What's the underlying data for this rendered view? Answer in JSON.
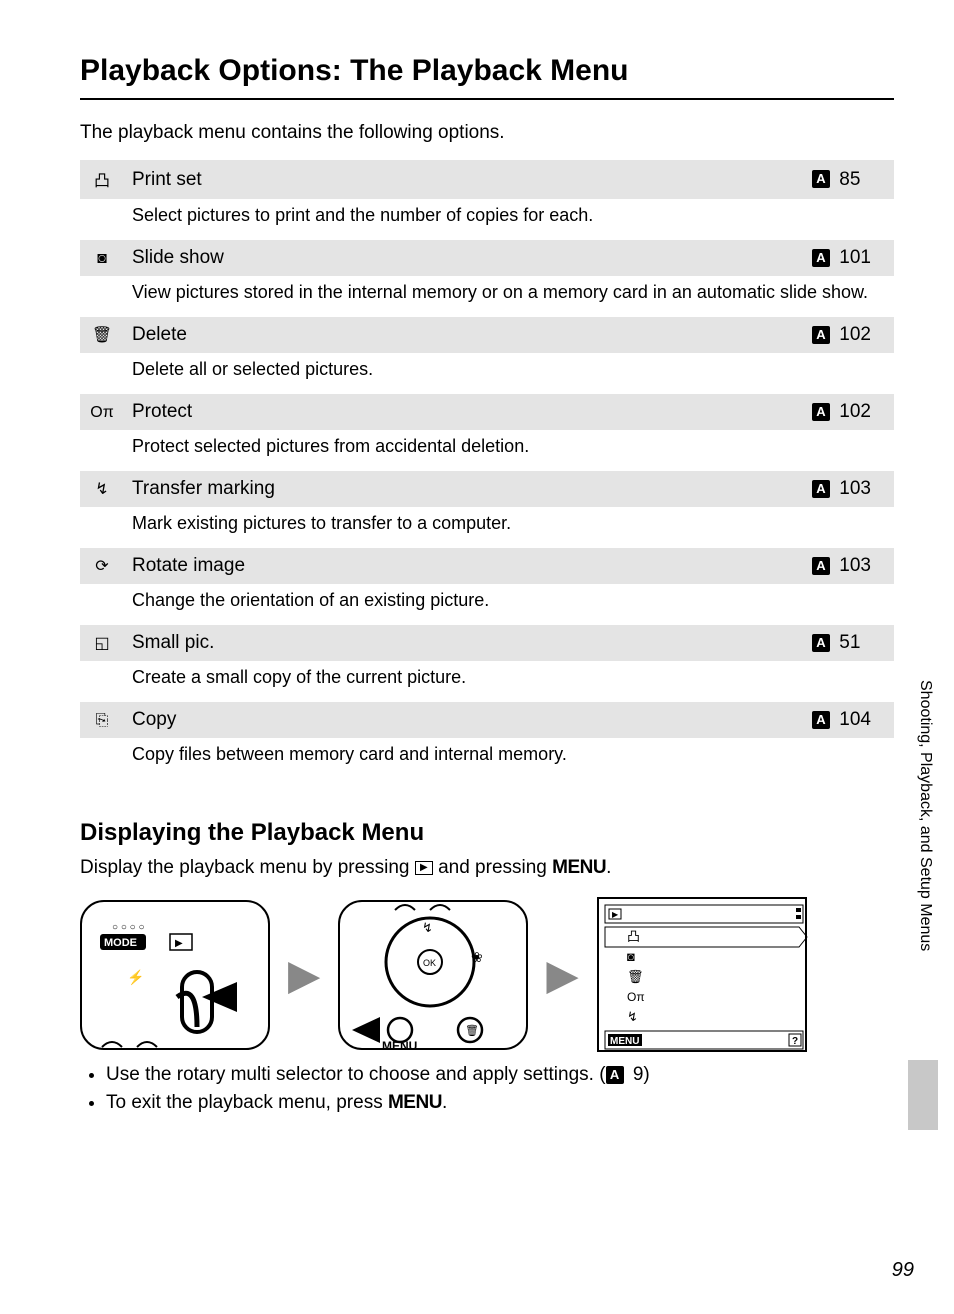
{
  "title": "Playback Options: The Playback Menu",
  "intro": "The playback menu contains the following options.",
  "ref_symbol": "A",
  "items": [
    {
      "icon": "凸",
      "label": "Print set",
      "page": "85",
      "desc": "Select pictures to print and the number of copies for each."
    },
    {
      "icon": "◙",
      "label": "Slide show",
      "page": "101",
      "desc": "View pictures stored in the internal memory or on a memory card in an automatic slide show."
    },
    {
      "icon": "🗑",
      "label": "Delete",
      "page": "102",
      "desc": "Delete all or selected pictures."
    },
    {
      "icon": "Oπ",
      "label": "Protect",
      "page": "102",
      "desc": "Protect selected pictures from accidental deletion."
    },
    {
      "icon": "↯",
      "label": "Transfer marking",
      "page": "103",
      "desc": "Mark existing pictures to transfer to a computer."
    },
    {
      "icon": "⟳",
      "label": "Rotate image",
      "page": "103",
      "desc": "Change the orientation of an existing picture."
    },
    {
      "icon": "◱",
      "label": "Small pic.",
      "page": "51",
      "desc": "Create a small copy of the current picture."
    },
    {
      "icon": "⎘",
      "label": "Copy",
      "page": "104",
      "desc": "Copy files between memory card and internal memory."
    }
  ],
  "subheading": "Displaying the Playback Menu",
  "subtext_pre": "Display the playback menu by pressing ",
  "subtext_mid": " and pressing ",
  "menu_word": "MENU",
  "bullets": [
    {
      "text_pre": "Use the rotary multi selector to choose and apply settings. (",
      "ref": "9",
      "text_post": ")"
    },
    {
      "text_pre": "To exit the playback menu, press ",
      "menu": true,
      "text_post": "."
    }
  ],
  "side_label": "Shooting, Playback, and Setup Menus",
  "page_number": "99",
  "colors": {
    "page_bg": "#ffffff",
    "outer_bg": "#c8c8c8",
    "row_bg": "#e4e4e4"
  },
  "illus": {
    "mode_label": "MODE",
    "menu_label": "MENU",
    "lcd_footer_left": "MENU",
    "lcd_footer_right": "?"
  }
}
